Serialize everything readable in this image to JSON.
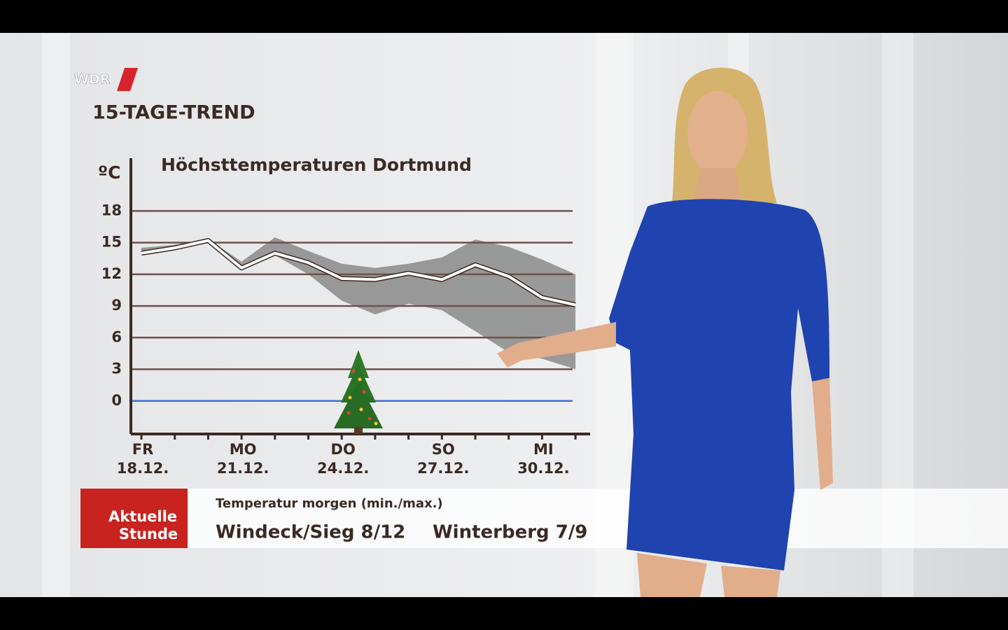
{
  "logo": "WDR",
  "section_title": "15-TAGE-TREND",
  "chart_data": {
    "type": "line",
    "title": "Höchsttemperaturen Dortmund",
    "y_unit": "ºC",
    "categories": [
      "18.12.",
      null,
      null,
      "21.12.",
      null,
      null,
      "24.12.",
      null,
      null,
      "27.12.",
      null,
      null,
      "30.12.",
      null
    ],
    "day_labels": [
      "FR",
      null,
      null,
      "MO",
      null,
      null,
      "DO",
      null,
      null,
      "SO",
      null,
      null,
      "MI",
      null
    ],
    "series": [
      {
        "color": "#ffffff",
        "values": [
          14.0,
          14.5,
          15.2,
          12.6,
          14.0,
          13.1,
          11.6,
          11.5,
          12.1,
          11.5,
          12.9,
          11.8,
          9.8,
          9.1
        ]
      }
    ],
    "band": {
      "color": "#8a8a8a",
      "high": [
        14.5,
        14.8,
        15.3,
        13.2,
        15.5,
        14.2,
        13.0,
        12.6,
        13.0,
        13.6,
        15.3,
        14.6,
        13.4,
        12.0
      ],
      "low": [
        14.0,
        14.3,
        15.0,
        12.6,
        13.8,
        12.0,
        9.5,
        8.2,
        9.2,
        8.6,
        6.6,
        4.6,
        4.0,
        3.0
      ]
    },
    "ylim": [
      -3,
      23
    ],
    "yticks": [
      0,
      3,
      6,
      9,
      12,
      15,
      18
    ],
    "grid": true,
    "grid_color": "#6e5249",
    "zero_line_color": "#3f6fd8"
  },
  "ticker": {
    "badge": [
      "Aktuelle",
      "Stunde"
    ],
    "heading": "Temperatur morgen (min./max.)",
    "items": [
      "Windeck/Sieg 8/12",
      "Winterberg 7/9"
    ]
  }
}
